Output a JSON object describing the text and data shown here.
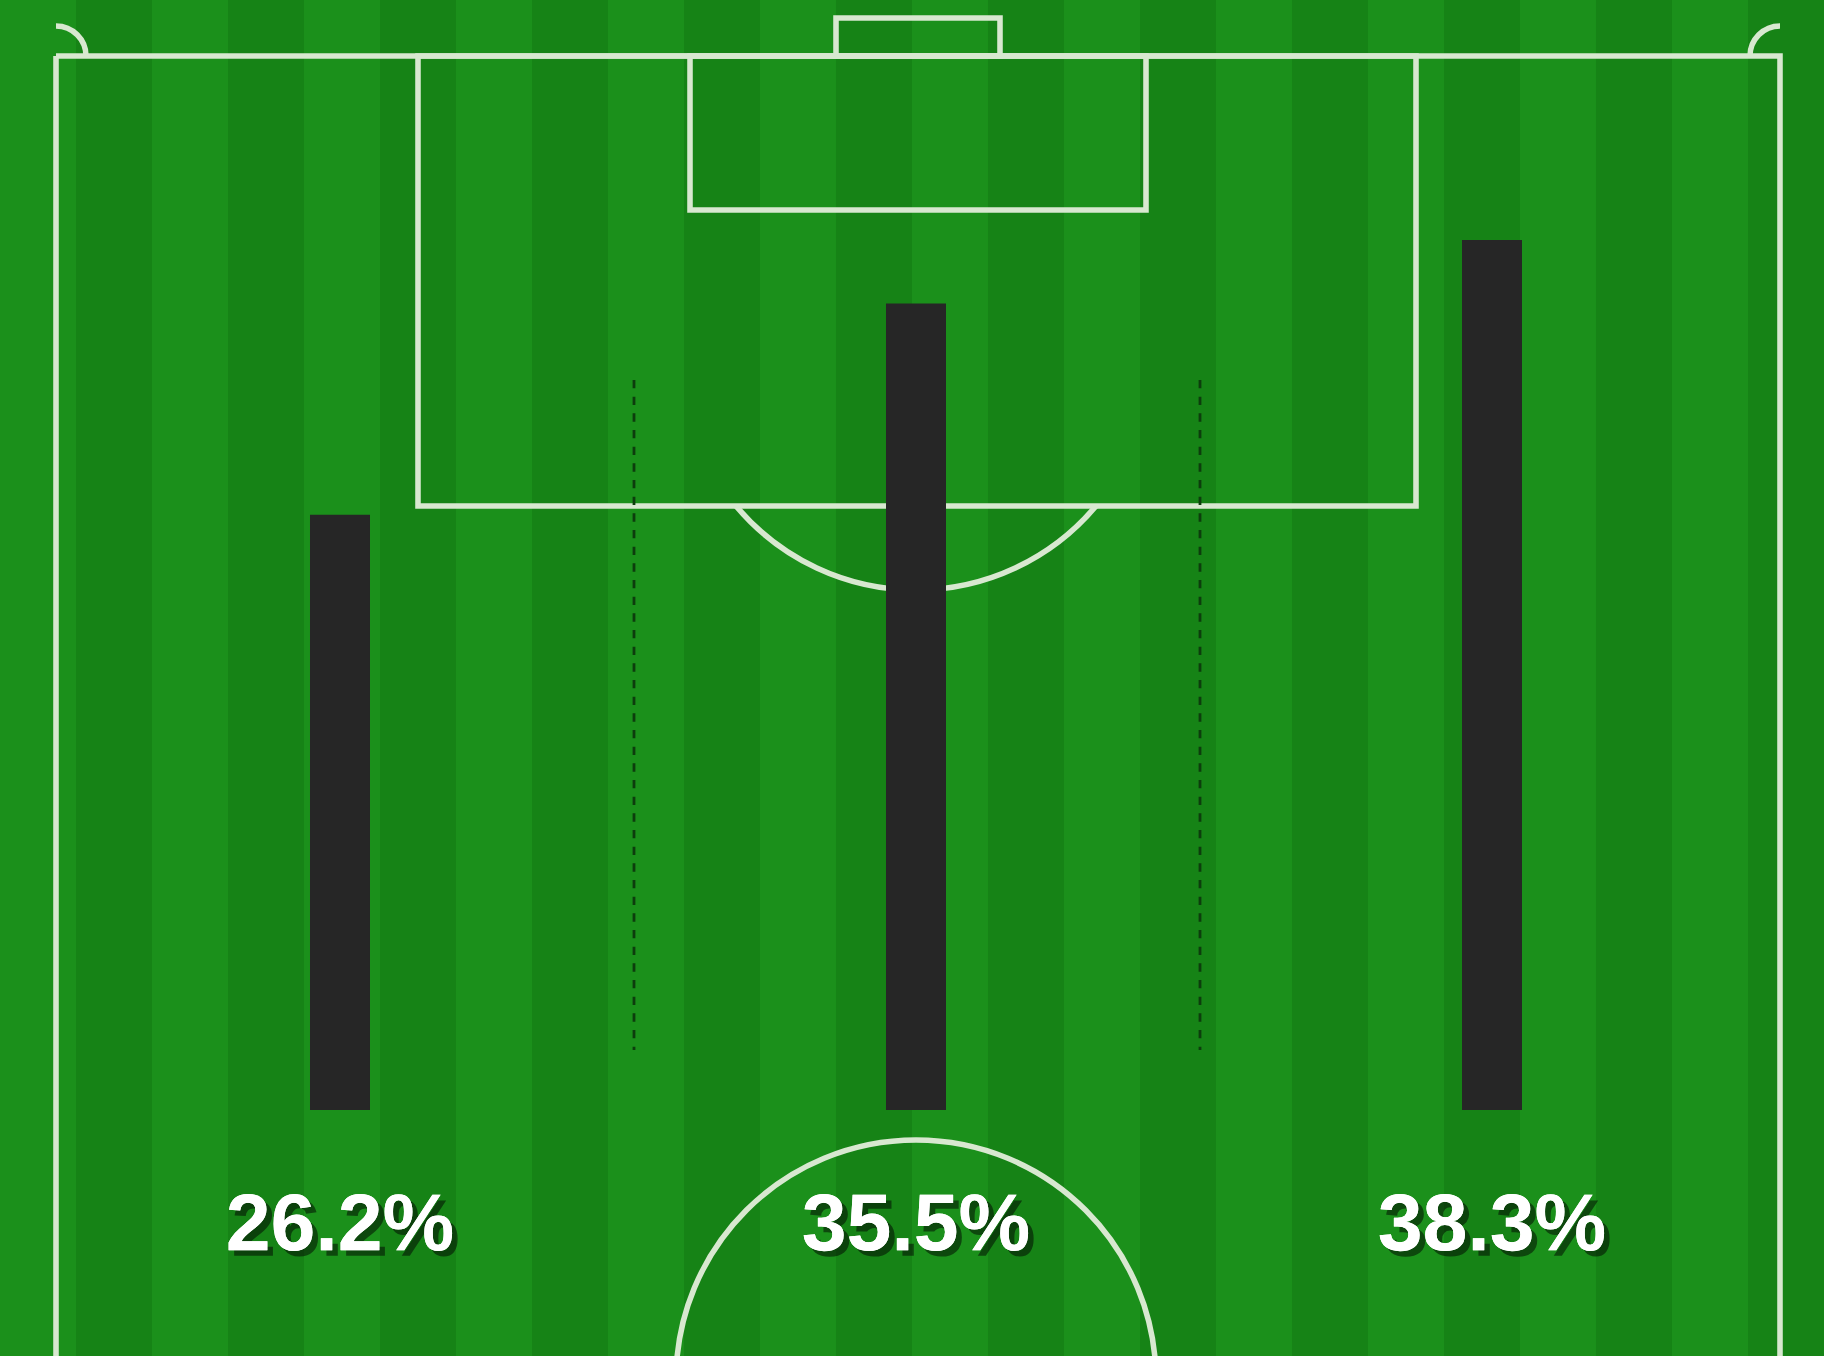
{
  "chart_data": {
    "type": "bar",
    "categories": [
      null,
      null,
      null
    ],
    "values": [
      26.2,
      35.5,
      38.3
    ],
    "value_labels": [
      "26.2%",
      "35.5%",
      "38.3%"
    ],
    "color": "#262626"
  }
}
